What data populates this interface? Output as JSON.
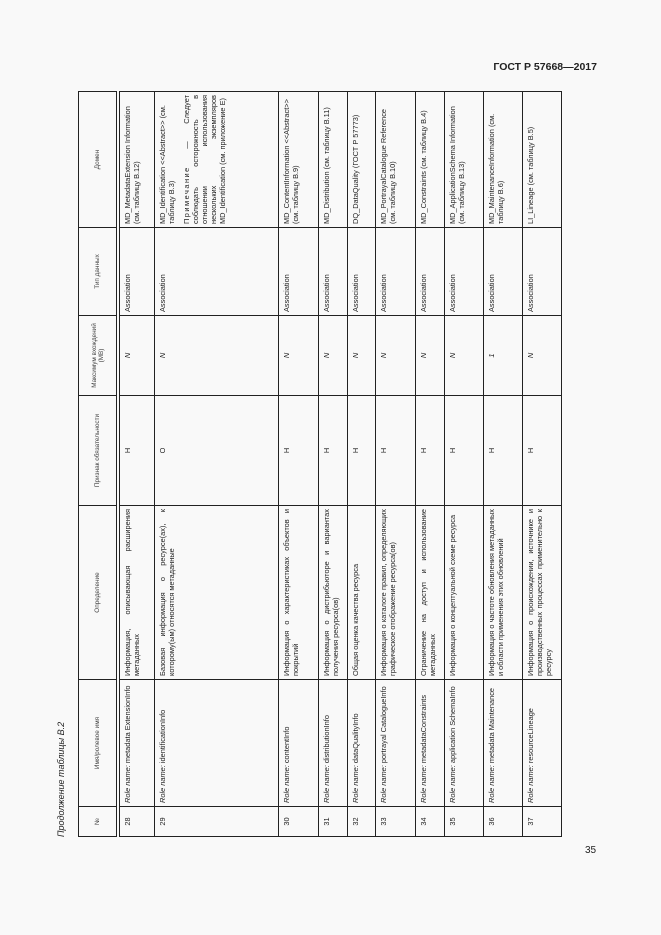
{
  "header": {
    "standard": "ГОСТ Р 57668—2017"
  },
  "caption": "Продолжение таблицы В.2",
  "page_number": "35",
  "table": {
    "columns": [
      "№",
      "Имя/ролевое имя",
      "Определение",
      "Признак обязательности",
      "Максимум вхождений (MB)",
      "Тип данных",
      "Домен"
    ],
    "rows": [
      {
        "num": "28",
        "role": "Role name:",
        "name": "metadata ExtensionInfo",
        "definition": "Информация, описывающая расширения метаданных",
        "obligation": "Н",
        "max": "N",
        "type": "Association",
        "domain": "MD_MetadataExtension Information (см. таблицу В.12)"
      },
      {
        "num": "29",
        "role": "Role name:",
        "name": "identificationInfo",
        "definition": "Базовая информация о ресурсе(ах), к которому(ым) относятся метаданные",
        "obligation": "О",
        "max": "N",
        "type": "Association",
        "domain": "MD_Identification <<Abstract>> (см. таблицу В.3)",
        "note_label": "Примечание",
        "note": "— Следует соблюдать осторожность в отношении использования нескольких экземпляров MD_Identification (см. приложение Е)"
      },
      {
        "num": "30",
        "role": "Role name:",
        "name": "contentInfo",
        "definition": "Информация о характеристиках объектов и покрытий",
        "obligation": "Н",
        "max": "N",
        "type": "Association",
        "domain": "MD_ContentInformation <<Abstract>> (см. таблицу В.9)"
      },
      {
        "num": "31",
        "role": "Role name:",
        "name": "distributionInfo",
        "definition": "Информация о дистрибьюторе и вариантах получения ресурса(ов)",
        "obligation": "Н",
        "max": "N",
        "type": "Association",
        "domain": "MD_Distribution (см. таблицу В.11)"
      },
      {
        "num": "32",
        "role": "Role name:",
        "name": "dataQualityInfo",
        "definition": "Общая оценка качества ресурса",
        "obligation": "Н",
        "max": "N",
        "type": "Association",
        "domain": "DQ_DataQuality (ГОСТ Р 57773)"
      },
      {
        "num": "33",
        "role": "Role name:",
        "name": "portrayal CatalogueInfo",
        "definition": "Информация о каталоге правил, определяющих графическое отображение ресурса(ов)",
        "obligation": "Н",
        "max": "N",
        "type": "Association",
        "domain": "MD_PortrayalCatalogue Reference (см. таблицу В.10)"
      },
      {
        "num": "34",
        "role": "Role name:",
        "name": "metadataConstraints",
        "definition": "Ограничение на доступ и использование метаданных",
        "obligation": "Н",
        "max": "N",
        "type": "Association",
        "domain": "MD_Constraints (см. таблицу В.4)"
      },
      {
        "num": "35",
        "role": "Role name:",
        "name": "application SchemaInfo",
        "definition": "Информация о концептуальной схеме ресурса",
        "obligation": "Н",
        "max": "N",
        "type": "Association",
        "domain": "MD_ApplicationSchema Information (см. таблицу В.13)"
      },
      {
        "num": "36",
        "role": "Role name:",
        "name": "metadata Maintenance",
        "definition": "Информация о частоте обновления метаданных и области применения этих обновлений",
        "obligation": "Н",
        "max": "1",
        "type": "Association",
        "domain": "MD_MaintenanceInformation (см. таблицу В.6)"
      },
      {
        "num": "37",
        "role": "Role name:",
        "name": "resourceLineage",
        "definition": "Информация о происхождении, источнике и производственных процессах применительно к ресурсу",
        "obligation": "Н",
        "max": "N",
        "type": "Association",
        "domain": "LI_Lineage (см. таблицу В.5)"
      }
    ]
  }
}
